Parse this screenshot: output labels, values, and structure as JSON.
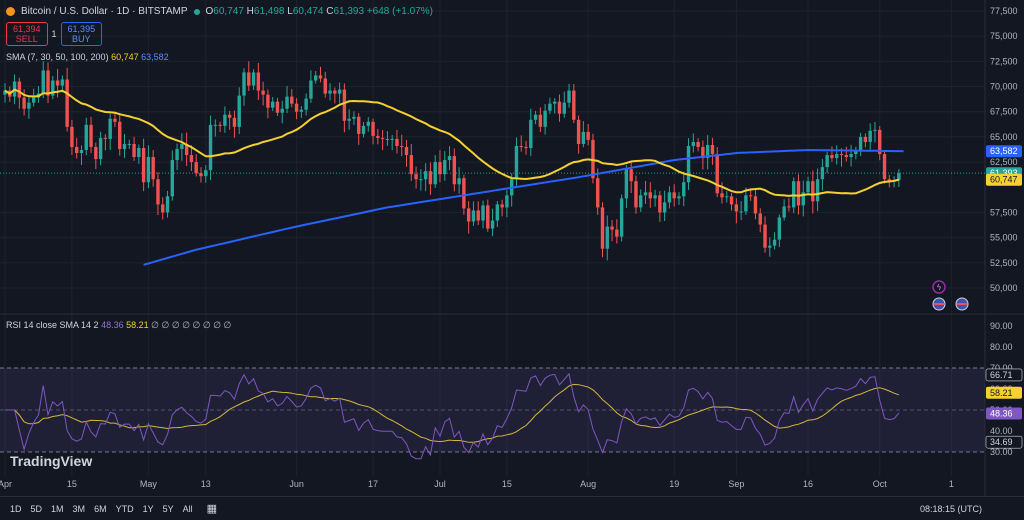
{
  "header": {
    "symbol": "Bitcoin / U.S. Dollar · 1D · BITSTAMP",
    "open_label": "O",
    "open": "60,747",
    "high_label": "H",
    "high": "61,498",
    "low_label": "L",
    "low": "60,474",
    "close_label": "C",
    "close": "61,393",
    "change": "+648 (+1.07%)",
    "sell_price": "61,394",
    "sell_label": "SELL",
    "spread": "1",
    "buy_price": "61,395",
    "buy_label": "BUY",
    "sma_label": "SMA (7, 30, 50, 100, 200)",
    "sma_val1": "60,747",
    "sma_val2": "63,582",
    "rsi_label": "RSI 14 close SMA 14 2",
    "rsi_val": "48.36",
    "rsi_ma_val": "58.21",
    "rsi_extra": "∅ ∅ ∅ ∅ ∅ ∅ ∅ ∅"
  },
  "bottom": {
    "ranges": [
      "1D",
      "5D",
      "1M",
      "3M",
      "6M",
      "YTD",
      "1Y",
      "5Y",
      "All"
    ],
    "time": "08:18:15 (UTC)",
    "logo": "TradingView"
  },
  "colors": {
    "up": "#26a69a",
    "down": "#ef5350",
    "sma_fast": "#f5d130",
    "sma_slow": "#2962ff",
    "rsi": "#7e57c2",
    "rsi_ma": "#d4b83a",
    "bg": "#131722"
  },
  "chart_data": {
    "type": "candlestick",
    "price_ticks": [
      "77,500",
      "75,000",
      "72,500",
      "70,000",
      "67,500",
      "65,000",
      "62,500",
      "57,500",
      "55,000",
      "52,500",
      "50,000"
    ],
    "price_tick_values": [
      77500,
      75000,
      72500,
      70000,
      67500,
      65000,
      62500,
      57500,
      55000,
      52500,
      50000
    ],
    "price_labels": [
      {
        "text": "63,582",
        "value": 63582,
        "color": "#2962ff"
      },
      {
        "text": "61,393",
        "value": 61393,
        "color": "#26a69a"
      },
      {
        "text": "60,747",
        "value": 60747,
        "color": "#f5d130"
      }
    ],
    "rsi_ticks": [
      "90.00",
      "80.00",
      "70.00",
      "60.00",
      "50.00",
      "40.00",
      "30.00"
    ],
    "rsi_tick_values": [
      90,
      80,
      70,
      60,
      50,
      40,
      30
    ],
    "rsi_labels": [
      {
        "text": "66.71",
        "value": 66.71,
        "color": "#d1d4dc"
      },
      {
        "text": "58.21",
        "value": 58.21,
        "color": "#f5d130"
      },
      {
        "text": "48.36",
        "value": 48.36,
        "color": "#7e57c2"
      },
      {
        "text": "34.69",
        "value": 34.69,
        "color": "#d1d4dc"
      }
    ],
    "x_ticks": [
      {
        "label": "Apr",
        "day": 0
      },
      {
        "label": "15",
        "day": 14
      },
      {
        "label": "May",
        "day": 30
      },
      {
        "label": "13",
        "day": 42
      },
      {
        "label": "Jun",
        "day": 61
      },
      {
        "label": "17",
        "day": 77
      },
      {
        "label": "Jul",
        "day": 91
      },
      {
        "label": "15",
        "day": 105
      },
      {
        "label": "Aug",
        "day": 122
      },
      {
        "label": "19",
        "day": 140
      },
      {
        "label": "Sep",
        "day": 153
      },
      {
        "label": "16",
        "day": 168
      },
      {
        "label": "Oct",
        "day": 183
      },
      {
        "label": "1",
        "day": 198
      }
    ],
    "close": [
      69600,
      69000,
      70500,
      68900,
      67800,
      68400,
      68900,
      69300,
      71600,
      69100,
      70600,
      70100,
      70700,
      66000,
      64000,
      63400,
      63700,
      66200,
      64000,
      62800,
      64900,
      64800,
      66800,
      66500,
      63800,
      64300,
      64300,
      63000,
      63900,
      60500,
      63000,
      60800,
      58300,
      57500,
      59100,
      62700,
      63800,
      64300,
      63200,
      62500,
      61400,
      61100,
      61700,
      66200,
      66200,
      66100,
      67200,
      66900,
      66000,
      69100,
      71400,
      70100,
      71400,
      69600,
      69200,
      67900,
      68500,
      67400,
      67800,
      69000,
      68300,
      67500,
      67700,
      68800,
      70600,
      71100,
      70800,
      69300,
      69600,
      69300,
      69700,
      66600,
      66800,
      67000,
      65300,
      66100,
      66500,
      65100,
      64900,
      64800,
      64800,
      64800,
      64100,
      64000,
      63200,
      61300,
      60800,
      60800,
      61600,
      60300,
      62500,
      61300,
      62700,
      63100,
      60300,
      60900,
      57900,
      56600,
      57700,
      56700,
      58200,
      55900,
      56700,
      58300,
      58000,
      59200,
      60800,
      64100,
      64000,
      63900,
      66700,
      67200,
      66000,
      67600,
      68300,
      68500,
      67300,
      68400,
      69600,
      66700,
      64300,
      65500,
      64700,
      60900,
      58000,
      53900,
      56100,
      55800,
      55100,
      58900,
      61800,
      60600,
      58000,
      59200,
      59500,
      58900,
      59200,
      57500,
      58500,
      59500,
      58900,
      59100,
      60500,
      64100,
      64500,
      64000,
      62900,
      64200,
      63300,
      59400,
      59000,
      59100,
      58300,
      57600,
      57600,
      59200,
      59100,
      57400,
      56300,
      54000,
      54200,
      54800,
      57000,
      58100,
      58000,
      60600,
      58200,
      59500,
      60600,
      58600,
      60800,
      62000,
      63200,
      62900,
      63300,
      63200,
      63000,
      63300,
      63700,
      65000,
      64500,
      65600,
      65700,
      63300,
      60800,
      60600,
      60700,
      61400
    ]
  }
}
